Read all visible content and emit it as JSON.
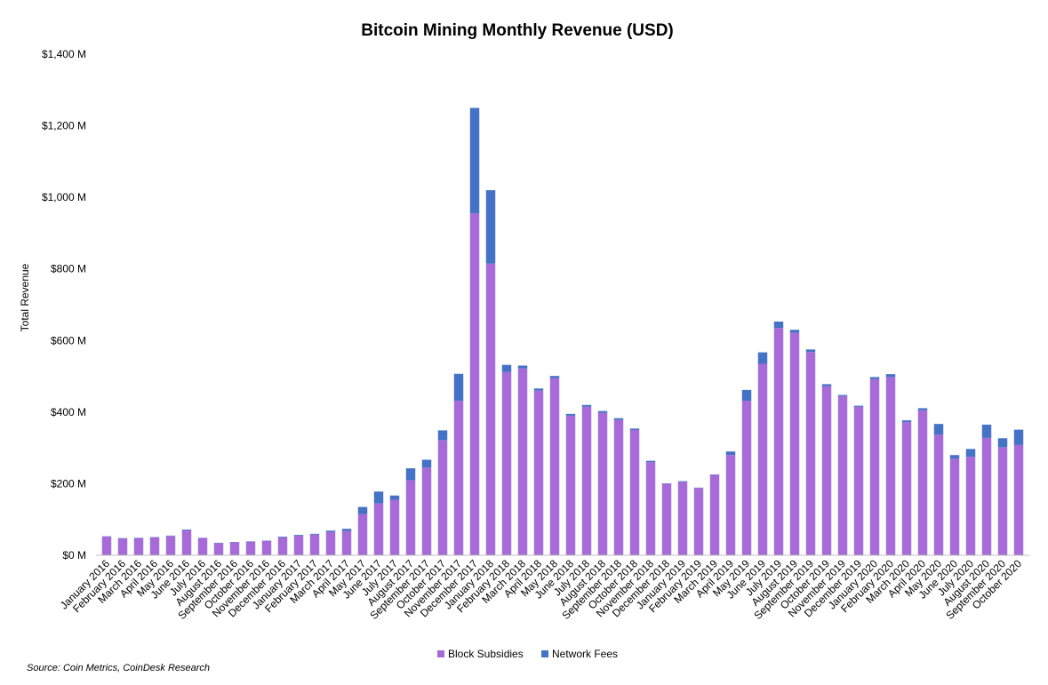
{
  "chart_data": {
    "type": "bar",
    "stacked": true,
    "title": "Bitcoin Mining Monthly Revenue (USD)",
    "ylabel": "Total Revenue",
    "xlabel": "",
    "ylim": [
      0,
      1400
    ],
    "y_ticks": [
      0,
      200,
      400,
      600,
      800,
      1000,
      1200,
      1400
    ],
    "y_tick_labels": [
      "$0 M",
      "$200 M",
      "$400 M",
      "$600 M",
      "$800 M",
      "$1,000 M",
      "$1,200 M",
      "$1,400 M"
    ],
    "legend_position": "bottom",
    "grid": false,
    "categories": [
      "January 2016",
      "February 2016",
      "March 2016",
      "April 2016",
      "May 2016",
      "June 2016",
      "July 2016",
      "August 2016",
      "September 2016",
      "October 2016",
      "November 2016",
      "December 2016",
      "January 2017",
      "February 2017",
      "March 2017",
      "April 2017",
      "May 2017",
      "June 2017",
      "July 2017",
      "August 2017",
      "September 2017",
      "October 2017",
      "November 2017",
      "December 2017",
      "January 2018",
      "February 2018",
      "March 2018",
      "April 2018",
      "May 2018",
      "June 2018",
      "July 2018",
      "August 2018",
      "September 2018",
      "October 2018",
      "November 2018",
      "December 2018",
      "January 2019",
      "February 2019",
      "March 2019",
      "April 2019",
      "May 2019",
      "June 2019",
      "July 2019",
      "August 2019",
      "September 2019",
      "October 2019",
      "November 2019",
      "December 2019",
      "January 2020",
      "February 2020",
      "March 2020",
      "April 2020",
      "May 2020",
      "June 2020",
      "July 2020",
      "August 2020",
      "September 2020",
      "October 2020"
    ],
    "tick_labels": [
      "January 2016",
      "February 2016",
      "March 2016",
      "April 2016",
      "May 2016",
      "June 2016",
      "July 2016",
      "August 2016",
      "September 2016",
      "October 2016",
      "November 2016",
      "December 2016",
      "January 2017",
      "February 2017",
      "March 2017",
      "April 2017",
      "May 2017",
      "June 2017",
      "July 2017",
      "August 2017",
      "September 2017",
      "October 2017",
      "November 2017",
      "December 2017",
      "January 2018",
      "February 2018",
      "March 2018",
      "April 2018",
      "May 2018",
      "June 2018",
      "July 2018",
      "August 2018",
      "September 2018",
      "October 2018",
      "November 2018",
      "December 2018",
      "January 2019",
      "February 2019",
      "March 2019",
      "April 2019",
      "May 2019",
      "June 2019",
      "July 2019",
      "August 2019",
      "September 2019",
      "October 2019",
      "November 2019",
      "December 2019",
      "January 2020",
      "February 2020",
      "March 2020",
      "April 2020",
      "May 2020",
      "June 2020",
      "July 2020",
      "August 2020",
      "September 2020",
      "October 2020"
    ],
    "series": [
      {
        "name": "Block Subsidies",
        "color": "#a66bd6",
        "values": [
          52,
          47,
          48,
          50,
          54,
          70,
          48,
          34,
          36,
          38,
          40,
          50,
          55,
          58,
          65,
          68,
          115,
          145,
          155,
          210,
          245,
          322,
          432,
          955,
          815,
          512,
          522,
          460,
          495,
          390,
          415,
          398,
          378,
          350,
          260,
          200,
          205,
          188,
          225,
          280,
          432,
          535,
          635,
          622,
          568,
          472,
          445,
          415,
          492,
          498,
          372,
          405,
          337,
          270,
          275,
          328,
          302,
          308
        ]
      },
      {
        "name": "Network Fees",
        "color": "#4472c4",
        "values": [
          1,
          1,
          1,
          1,
          1,
          2,
          1,
          1,
          1,
          1,
          1,
          2,
          2,
          2,
          4,
          6,
          20,
          33,
          12,
          33,
          22,
          27,
          75,
          295,
          205,
          20,
          8,
          6,
          6,
          5,
          5,
          5,
          5,
          4,
          4,
          1,
          2,
          1,
          1,
          10,
          30,
          32,
          18,
          8,
          7,
          6,
          3,
          3,
          6,
          8,
          5,
          6,
          30,
          10,
          22,
          37,
          25,
          43
        ]
      }
    ],
    "source": "Source: Coin Metrics, CoinDesk Research"
  }
}
